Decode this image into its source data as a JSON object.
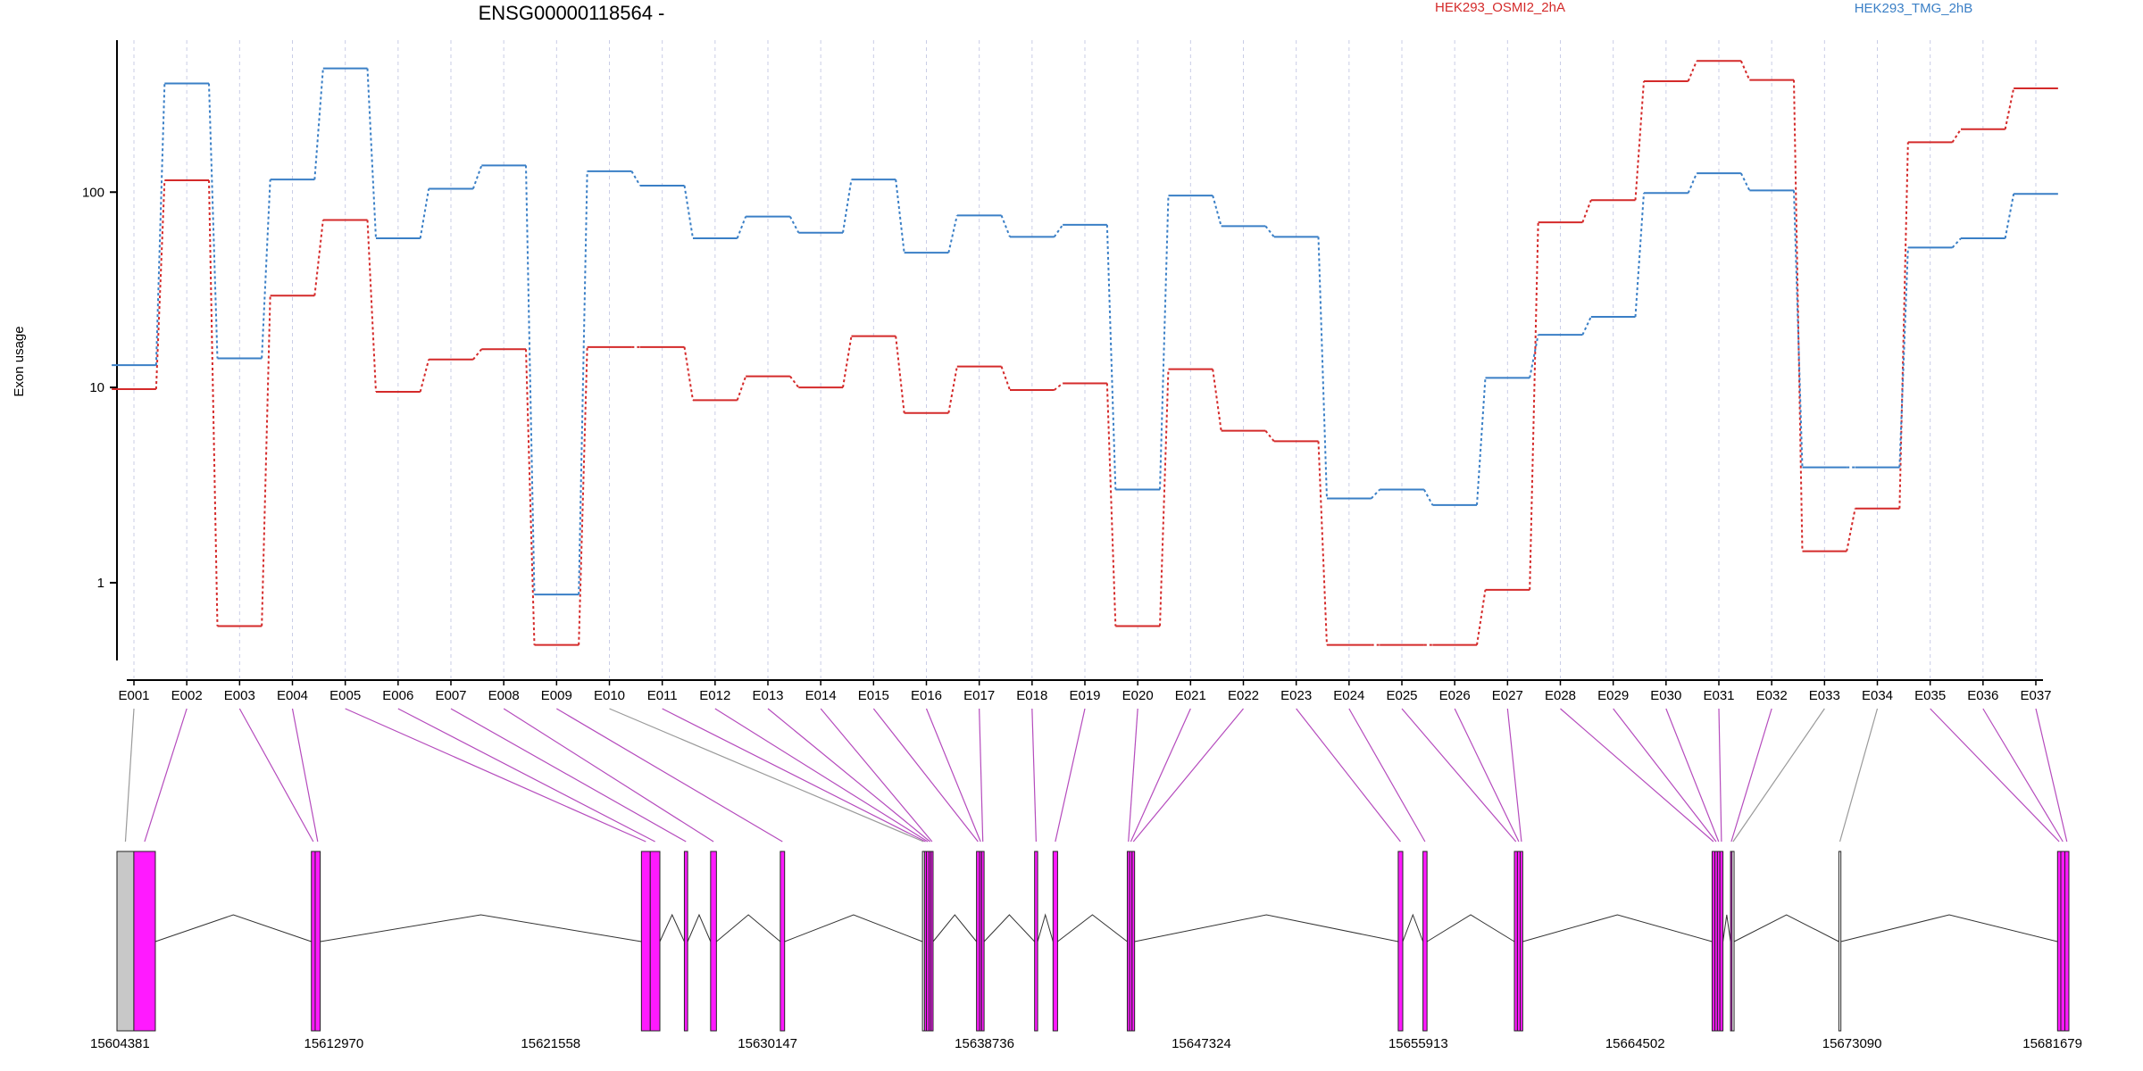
{
  "chart_data": {
    "type": "line",
    "title": "ENSG00000118564 -",
    "ylabel": "Exon usage",
    "y_scale": "log",
    "ylim": [
      0.4,
      600
    ],
    "y_ticks": [
      1,
      10,
      100
    ],
    "grid": "vertical dotted lines at exon positions",
    "legend_placement": "top",
    "categories": [
      "E001",
      "E002",
      "E003",
      "E004",
      "E005",
      "E006",
      "E007",
      "E008",
      "E009",
      "E010",
      "E011",
      "E012",
      "E013",
      "E014",
      "E015",
      "E016",
      "E017",
      "E018",
      "E019",
      "E020",
      "E021",
      "E022",
      "E023",
      "E024",
      "E025",
      "E026",
      "E027",
      "E028",
      "E029",
      "E030",
      "E031",
      "E032",
      "E033",
      "E034",
      "E035",
      "E036",
      "E037"
    ],
    "series": [
      {
        "name": "HEK293_OSMI2_2hA",
        "color": "#d42a2a",
        "values": [
          9.8,
          115,
          0.6,
          29.5,
          72,
          9.5,
          13.9,
          15.7,
          0.48,
          16.1,
          16.1,
          8.6,
          11.4,
          10.0,
          18.3,
          7.4,
          12.8,
          9.7,
          10.5,
          0.6,
          12.4,
          6.0,
          5.3,
          0.48,
          0.48,
          0.48,
          0.92,
          70,
          91,
          370,
          470,
          375,
          1.45,
          2.4,
          180,
          210,
          340
        ]
      },
      {
        "name": "HEK293_TMG_2hB",
        "color": "#3a7fc6",
        "values": [
          13.0,
          360,
          14.1,
          116,
          430,
          58,
          104,
          137,
          0.87,
          128,
          108,
          58,
          75,
          62,
          116,
          49,
          76,
          59,
          68,
          3.0,
          96,
          67,
          59,
          2.7,
          3.0,
          2.5,
          11.2,
          18.6,
          23,
          99,
          125,
          102,
          3.9,
          3.9,
          52,
          58,
          98
        ]
      }
    ],
    "gene_model": {
      "coordinate_labels": [
        "15604381",
        "15612970",
        "15621558",
        "15630147",
        "15638736",
        "15647324",
        "15655913",
        "15664502",
        "15673090",
        "15681679"
      ],
      "genomic_range": [
        15604381,
        15681679
      ],
      "exons": [
        {
          "id": "E001",
          "start": 15604381,
          "end": 15605050,
          "color": "#c8c8c8"
        },
        {
          "id": "E002",
          "start": 15605050,
          "end": 15605900,
          "color": "#ff1aff"
        },
        {
          "id": "E003",
          "start": 15612080,
          "end": 15612230,
          "color": "#ff1aff"
        },
        {
          "id": "E004",
          "start": 15612230,
          "end": 15612430,
          "color": "#ff1aff"
        },
        {
          "id": "E005",
          "start": 15625150,
          "end": 15625500,
          "color": "#ff1aff"
        },
        {
          "id": "E006",
          "start": 15625500,
          "end": 15625880,
          "color": "#ff1aff"
        },
        {
          "id": "E007",
          "start": 15626850,
          "end": 15626980,
          "color": "#ff1aff"
        },
        {
          "id": "E008",
          "start": 15627890,
          "end": 15628120,
          "color": "#ff1aff"
        },
        {
          "id": "E009",
          "start": 15630650,
          "end": 15630820,
          "color": "#ff1aff"
        },
        {
          "id": "E010",
          "start": 15636280,
          "end": 15636360,
          "color": "#ffffff"
        },
        {
          "id": "E011",
          "start": 15636360,
          "end": 15636440,
          "color": "#ff1aff"
        },
        {
          "id": "E012",
          "start": 15636440,
          "end": 15636540,
          "color": "#ff1aff"
        },
        {
          "id": "E013",
          "start": 15636540,
          "end": 15636620,
          "color": "#ff1aff"
        },
        {
          "id": "E014",
          "start": 15636620,
          "end": 15636700,
          "color": "#ff1aff"
        },
        {
          "id": "E015",
          "start": 15638420,
          "end": 15638540,
          "color": "#ff1aff"
        },
        {
          "id": "E016",
          "start": 15638540,
          "end": 15638620,
          "color": "#ff1aff"
        },
        {
          "id": "E017",
          "start": 15638620,
          "end": 15638720,
          "color": "#ff1aff"
        },
        {
          "id": "E018",
          "start": 15640720,
          "end": 15640840,
          "color": "#ff1aff"
        },
        {
          "id": "E019",
          "start": 15641450,
          "end": 15641630,
          "color": "#ff1aff"
        },
        {
          "id": "E020",
          "start": 15644390,
          "end": 15644480,
          "color": "#ff1aff"
        },
        {
          "id": "E021",
          "start": 15644480,
          "end": 15644580,
          "color": "#ff1aff"
        },
        {
          "id": "E022",
          "start": 15644580,
          "end": 15644680,
          "color": "#ff1aff"
        },
        {
          "id": "E023",
          "start": 15655120,
          "end": 15655300,
          "color": "#ff1aff"
        },
        {
          "id": "E024",
          "start": 15656100,
          "end": 15656260,
          "color": "#ff1aff"
        },
        {
          "id": "E025",
          "start": 15659720,
          "end": 15659840,
          "color": "#ff1aff"
        },
        {
          "id": "E026",
          "start": 15659840,
          "end": 15659950,
          "color": "#ff1aff"
        },
        {
          "id": "E027",
          "start": 15659950,
          "end": 15660050,
          "color": "#ff1aff"
        },
        {
          "id": "E028",
          "start": 15667550,
          "end": 15667660,
          "color": "#ff1aff"
        },
        {
          "id": "E029",
          "start": 15667660,
          "end": 15667760,
          "color": "#ff1aff"
        },
        {
          "id": "E030",
          "start": 15667760,
          "end": 15667860,
          "color": "#ff1aff"
        },
        {
          "id": "E031",
          "start": 15667860,
          "end": 15667980,
          "color": "#ff1aff"
        },
        {
          "id": "E032",
          "start": 15668280,
          "end": 15668340,
          "color": "#ff1aff"
        },
        {
          "id": "E033",
          "start": 15668340,
          "end": 15668420,
          "color": "#ffffff"
        },
        {
          "id": "E034",
          "start": 15672570,
          "end": 15672650,
          "color": "#ffffff"
        },
        {
          "id": "E035",
          "start": 15681230,
          "end": 15681360,
          "color": "#ff1aff"
        },
        {
          "id": "E036",
          "start": 15681360,
          "end": 15681520,
          "color": "#ff1aff"
        },
        {
          "id": "E037",
          "start": 15681520,
          "end": 15681679,
          "color": "#ff1aff"
        }
      ]
    }
  }
}
